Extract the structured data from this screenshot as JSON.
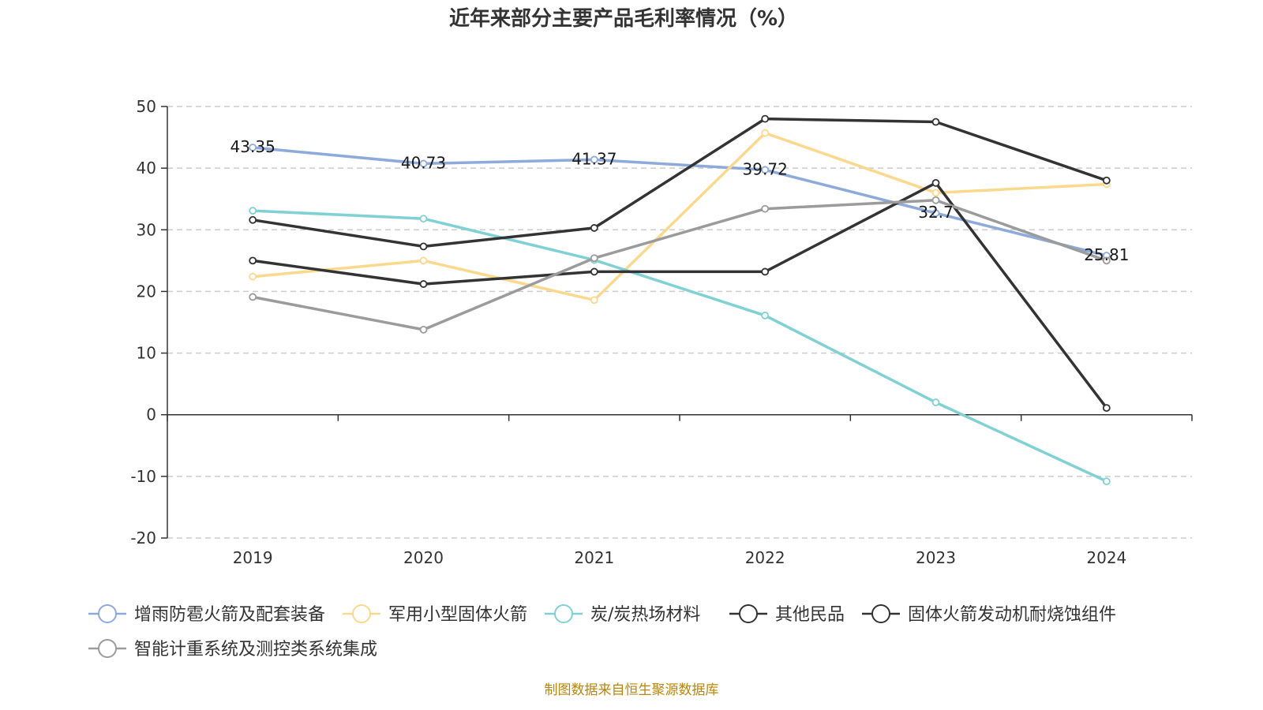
{
  "title": "近年来部分主要产品毛利率情况（%）",
  "source": "制图数据来自恒生聚源数据库",
  "chart_data": {
    "type": "line",
    "title": "近年来部分主要产品毛利率情况（%）",
    "categories": [
      "2019",
      "2020",
      "2021",
      "2022",
      "2023",
      "2024"
    ],
    "ylim": [
      -20,
      50
    ],
    "yticks": [
      50,
      40,
      30,
      20,
      10,
      0,
      -10,
      -20
    ],
    "grid": true,
    "legend_position": "bottom",
    "series": [
      {
        "name": "增雨防雹火箭及配套装备",
        "color": "#8eaadb",
        "values": [
          43.35,
          40.73,
          41.37,
          39.72,
          32.7,
          25.81
        ],
        "labels": [
          "43.35",
          "40.73",
          "41.37",
          "39.72",
          "32.7",
          "25.81"
        ]
      },
      {
        "name": "军用小型固体火箭",
        "color": "#fbd98c",
        "values": [
          22.4,
          25.0,
          18.6,
          45.7,
          36.0,
          37.4
        ]
      },
      {
        "name": "炭/炭热场材料",
        "color": "#7fd1d3",
        "values": [
          33.1,
          31.8,
          25.1,
          16.1,
          2.0,
          -10.8
        ]
      },
      {
        "name": "其他民品",
        "color": "#333333",
        "values": [
          31.6,
          27.3,
          30.3,
          48.0,
          47.5,
          38.0
        ]
      },
      {
        "name": "固体火箭发动机耐烧蚀组件",
        "color": "#333333",
        "values": [
          25.0,
          21.2,
          23.2,
          23.2,
          37.6,
          1.1
        ]
      },
      {
        "name": "智能计重系统及测控类系统集成",
        "color": "#9b9b9b",
        "values": [
          19.1,
          13.8,
          25.4,
          33.4,
          34.8,
          25.0
        ]
      }
    ]
  }
}
